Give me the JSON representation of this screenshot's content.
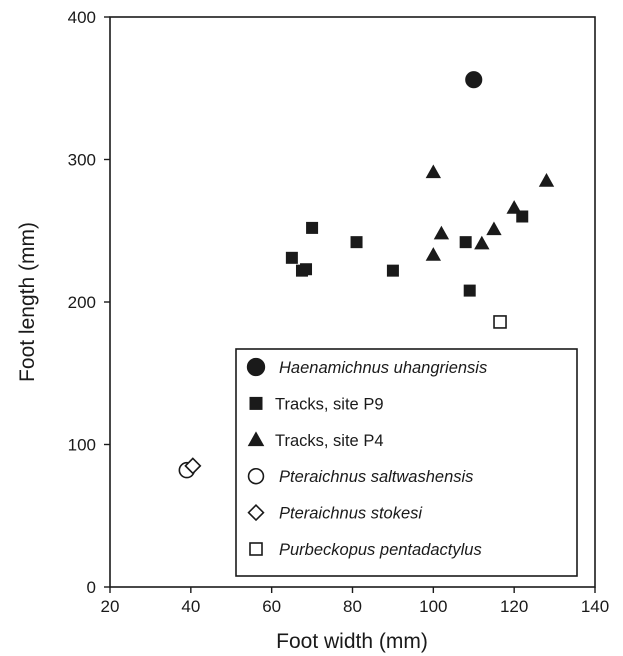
{
  "chart_data": {
    "type": "scatter",
    "title": "",
    "xlabel": "Foot width (mm)",
    "ylabel": "Foot length (mm)",
    "xlim": [
      20,
      140
    ],
    "ylim": [
      0,
      400
    ],
    "xticks": [
      20,
      40,
      60,
      80,
      100,
      120,
      140
    ],
    "yticks": [
      0,
      100,
      200,
      300,
      400
    ],
    "grid": false,
    "legend_position": "bottom-right",
    "series": [
      {
        "name": "Haenamichnus uhangriensis",
        "marker": "circle",
        "filled": true,
        "italic": true,
        "x": [
          110
        ],
        "y": [
          356
        ]
      },
      {
        "name": "Tracks, site P9",
        "marker": "square",
        "filled": true,
        "italic": false,
        "x": [
          65,
          67.5,
          68.5,
          70,
          81,
          90,
          108,
          109,
          122
        ],
        "y": [
          231,
          222,
          223,
          252,
          242,
          222,
          242,
          208,
          260
        ]
      },
      {
        "name": "Tracks, site P4",
        "marker": "triangle",
        "filled": true,
        "italic": false,
        "x": [
          100,
          100,
          102,
          112,
          115,
          120,
          128
        ],
        "y": [
          291,
          233,
          248,
          241,
          251,
          266,
          285
        ]
      },
      {
        "name": "Pteraichnus saltwashensis",
        "marker": "circle",
        "filled": false,
        "italic": true,
        "x": [
          39
        ],
        "y": [
          82
        ]
      },
      {
        "name": "Pteraichnus stokesi",
        "marker": "diamond",
        "filled": false,
        "italic": true,
        "x": [
          40.5
        ],
        "y": [
          85
        ]
      },
      {
        "name": "Purbeckopus pentadactylus",
        "marker": "square",
        "filled": false,
        "italic": true,
        "x": [
          116.5
        ],
        "y": [
          186
        ]
      }
    ]
  }
}
